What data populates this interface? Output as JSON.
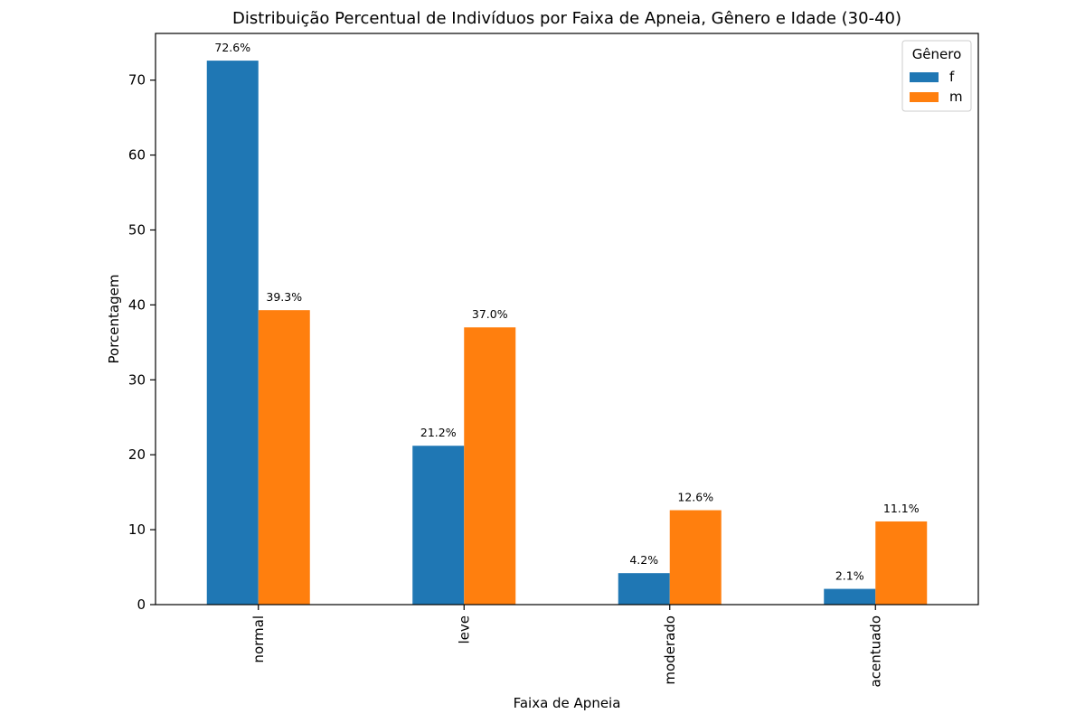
{
  "chart_data": {
    "type": "bar",
    "title": "Distribuição Percentual de Indivíduos por Faixa de Apneia, Gênero e Idade (30-40)",
    "xlabel": "Faixa de Apneia",
    "ylabel": "Porcentagem",
    "categories": [
      "normal",
      "leve",
      "moderado",
      "acentuado"
    ],
    "series": [
      {
        "name": "f",
        "color": "#1f77b4",
        "values": [
          72.6,
          21.2,
          4.2,
          2.1
        ],
        "labels": [
          "72.6%",
          "21.2%",
          "4.2%",
          "2.1%"
        ]
      },
      {
        "name": "m",
        "color": "#ff7f0e",
        "values": [
          39.3,
          37.0,
          12.6,
          11.1
        ],
        "labels": [
          "39.3%",
          "37.0%",
          "12.6%",
          "11.1%"
        ]
      }
    ],
    "yticks": [
      0,
      10,
      20,
      30,
      40,
      50,
      60,
      70
    ],
    "ytick_labels": [
      "0",
      "10",
      "20",
      "30",
      "40",
      "50",
      "60",
      "70"
    ],
    "ylim": [
      0,
      76.23
    ],
    "grid": false,
    "legend": {
      "title": "Gênero",
      "position": "top-right"
    }
  }
}
